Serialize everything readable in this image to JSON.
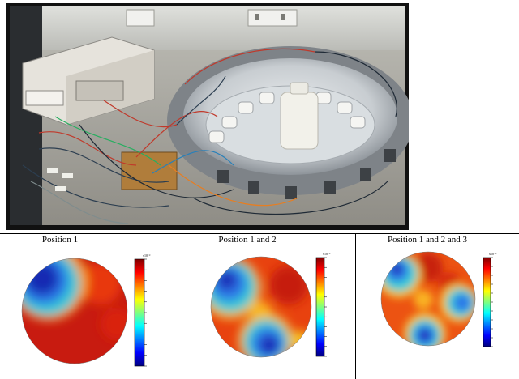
{
  "figure": {
    "photo_description_hidden": false,
    "panels": [
      {
        "title": "Position 1",
        "colorbar_unit": "x10⁻³"
      },
      {
        "title": "Position 1 and 2",
        "colorbar_unit": "x10⁻³"
      },
      {
        "title": "Position 1 and 2 and 3",
        "colorbar_unit": "x10⁻³"
      }
    ]
  }
}
